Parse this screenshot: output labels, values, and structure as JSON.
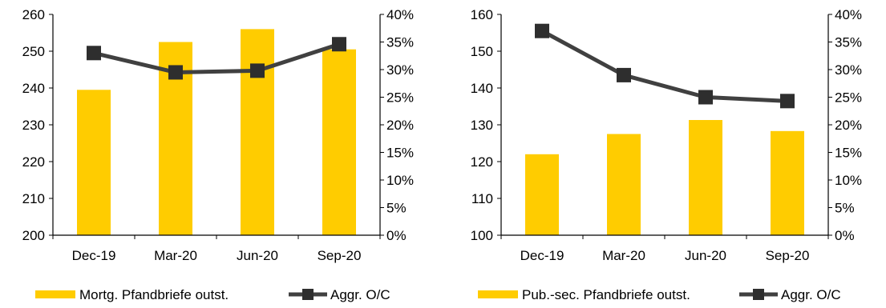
{
  "chart_data": [
    {
      "type": "bar",
      "title": "",
      "categories": [
        "Dec-19",
        "Mar-20",
        "Jun-20",
        "Sep-20"
      ],
      "ylim": [
        200,
        260
      ],
      "y_ticks": [
        "200",
        "210",
        "220",
        "230",
        "240",
        "250",
        "260"
      ],
      "y2lim": [
        0,
        40
      ],
      "y2_ticks": [
        "0%",
        "5%",
        "10%",
        "15%",
        "20%",
        "25%",
        "30%",
        "35%",
        "40%"
      ],
      "series": [
        {
          "name": "Mortg. Pfandbriefe outst.",
          "type": "bar",
          "axis": "left",
          "color": "#FFCC00",
          "values": [
            239.5,
            252.5,
            256.0,
            250.5
          ]
        },
        {
          "name": "Aggr. O/C",
          "type": "line",
          "axis": "right",
          "color": "#404040",
          "values": [
            33.0,
            29.5,
            29.8,
            34.6
          ]
        }
      ],
      "grid": false,
      "legend": "bottom"
    },
    {
      "type": "bar",
      "title": "",
      "categories": [
        "Dec-19",
        "Mar-20",
        "Jun-20",
        "Sep-20"
      ],
      "ylim": [
        100,
        160
      ],
      "y_ticks": [
        "100",
        "110",
        "120",
        "130",
        "140",
        "150",
        "160"
      ],
      "y2lim": [
        0,
        40
      ],
      "y2_ticks": [
        "0%",
        "5%",
        "10%",
        "15%",
        "20%",
        "25%",
        "30%",
        "35%",
        "40%"
      ],
      "series": [
        {
          "name": "Pub.-sec. Pfandbriefe outst.",
          "type": "bar",
          "axis": "left",
          "color": "#FFCC00",
          "values": [
            122.0,
            127.5,
            131.3,
            128.3
          ]
        },
        {
          "name": "Aggr. O/C",
          "type": "line",
          "axis": "right",
          "color": "#404040",
          "values": [
            37.0,
            29.0,
            25.0,
            24.3
          ]
        }
      ],
      "grid": false,
      "legend": "bottom"
    }
  ]
}
